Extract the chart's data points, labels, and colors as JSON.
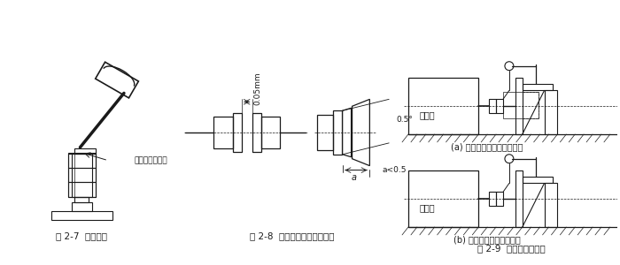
{
  "bg_color": "#ffffff",
  "line_color": "#1a1a1a",
  "fig27_label": "图 2-7  注意事项",
  "fig28_label": "图 2-8  联轴器之间的安装精度",
  "fig29_label": "图 2-9  安装精度的检查",
  "caption_a": "(a) 用百分表检查联轴器端面",
  "caption_b": "(b) 用百分表检查支座端面",
  "label_copper": "此处应垫一铜棒",
  "label_gap": "0.05mm",
  "label_angle": "0.5°",
  "label_a": "a",
  "label_a05": "a<0.5",
  "label_yuandongji": "原动机",
  "font_size_caption": 7,
  "font_size_label": 6.5
}
